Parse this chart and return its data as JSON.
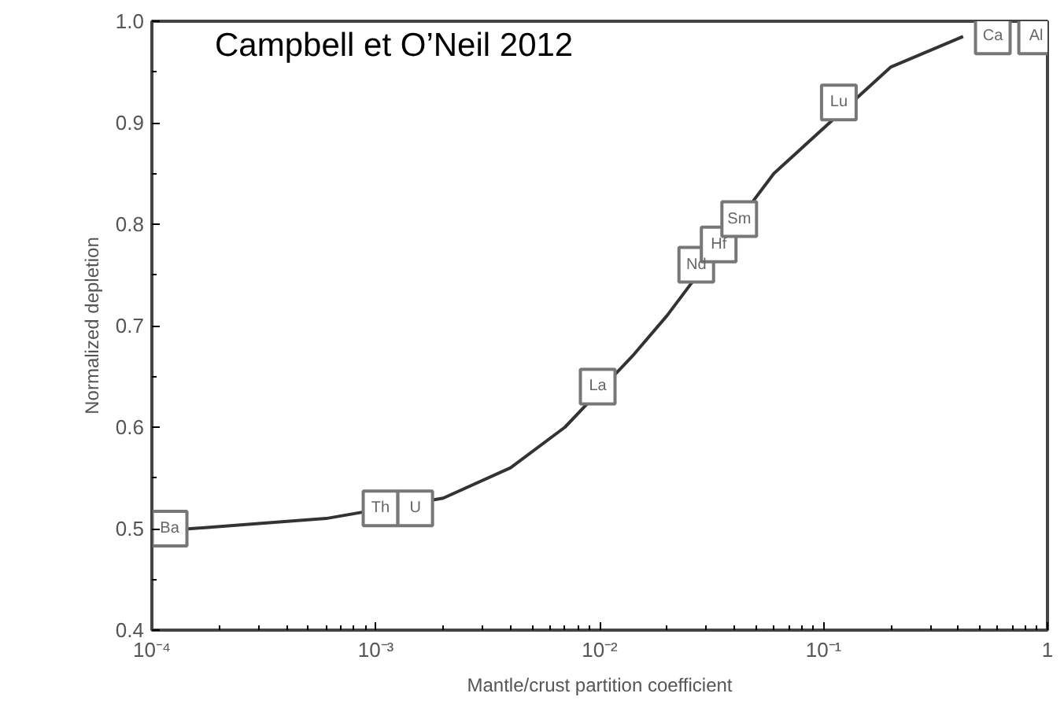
{
  "chart_data": {
    "type": "line",
    "xlabel": "Mantle/crust partition coefficient",
    "ylabel": "Normalized depletion",
    "log": "x",
    "x": [
      0.0001,
      0.0003,
      0.0006,
      0.002,
      0.004,
      0.007,
      0.014,
      0.02,
      0.06,
      0.2,
      0.42
    ],
    "series": [
      {
        "color": "#333333",
        "values": [
          0.497,
          0.505,
          0.51,
          0.53,
          0.56,
          0.6,
          0.67,
          0.71,
          0.85,
          0.955,
          0.985
        ]
      },
      {
        "type": "scatter",
        "marker": "square",
        "color": "#777777",
        "x": [
          0.00012,
          0.00105,
          0.0015,
          0.0098,
          0.027,
          0.034,
          0.042,
          0.117,
          0.57,
          0.89
        ],
        "values": [
          0.5,
          0.52,
          0.52,
          0.64,
          0.76,
          0.78,
          0.805,
          0.92,
          0.985,
          0.985
        ],
        "value_labels": [
          "Ba",
          "Th",
          "U",
          "La",
          "Nd",
          "Hf",
          "Sm",
          "Lu",
          "Ca",
          "Al"
        ]
      }
    ],
    "xlim": [
      0.0001,
      1
    ],
    "ylim": [
      0.4,
      1.0
    ],
    "xticks": [
      {
        "value": 0.0001,
        "label": "10⁻⁴"
      },
      {
        "value": 0.001,
        "label": "10⁻³"
      },
      {
        "value": 0.01,
        "label": "10⁻²"
      },
      {
        "value": 0.1,
        "label": "10⁻¹"
      },
      1
    ],
    "yticks": [
      0.4,
      0.5,
      0.6,
      0.7,
      0.8,
      0.9,
      {
        "value": 1.0,
        "label": "1.0"
      }
    ],
    "grid": false,
    "marker": "none",
    "line_style": "solid",
    "annotations": [
      "Campbell et O’Neil 2012"
    ]
  }
}
